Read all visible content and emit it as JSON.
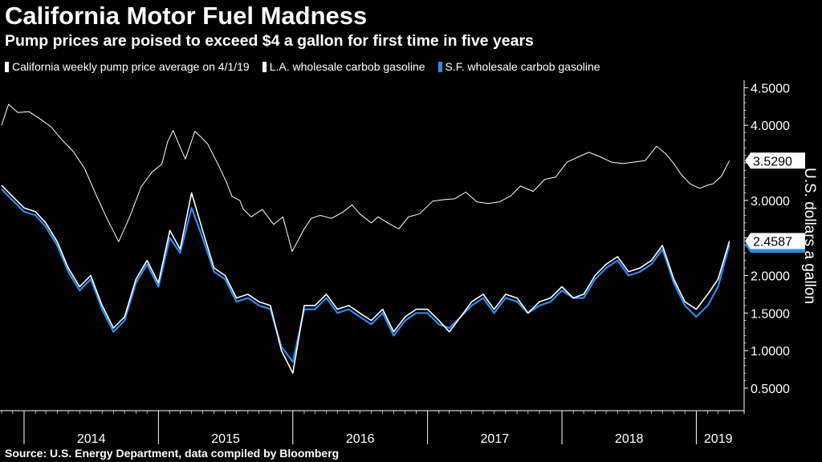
{
  "title": "California Motor Fuel Madness",
  "subtitle": "Pump prices are poised to exceed $4 a gallon for first time in five years",
  "source": "Source: U.S. Energy Department, data compiled by Bloomberg",
  "colors": {
    "background": "#000000",
    "pump": "#ffffff",
    "la": "#ffffff",
    "sf": "#2b8cf0"
  },
  "chart_data": {
    "type": "line",
    "ylabel": "U.S. dollars a gallon",
    "ylim": [
      0.2,
      4.6
    ],
    "y_ticks": [
      "4.5000",
      "4.0000",
      "3.5000",
      "3.0000",
      "2.5000",
      "2.0000",
      "1.5000",
      "1.0000",
      "0.5000"
    ],
    "y_tick_values": [
      4.5,
      4.0,
      3.5,
      3.0,
      2.5,
      2.0,
      1.5,
      1.0,
      0.5
    ],
    "x_range": [
      "2013-11-01",
      "2019-04-30"
    ],
    "x_tick_labels": [
      "2014",
      "2015",
      "2016",
      "2017",
      "2018",
      "2019"
    ],
    "x_tick_years": [
      2014,
      2015,
      2016,
      2017,
      2018,
      2019
    ],
    "legend_position": "top-left",
    "grid": false,
    "last_value_labels": {
      "pump": "3.5290",
      "la": "2.4587"
    },
    "series": [
      {
        "name": "California weekly pump price average on 4/1/19",
        "key": "pump",
        "x": [
          "2013-11-01",
          "2013-11-20",
          "2013-12-15",
          "2014-01-15",
          "2014-02-15",
          "2014-03-15",
          "2014-04-15",
          "2014-05-15",
          "2014-06-15",
          "2014-07-15",
          "2014-08-15",
          "2014-09-15",
          "2014-10-15",
          "2014-11-15",
          "2014-12-15",
          "2015-01-10",
          "2015-01-26",
          "2015-02-10",
          "2015-02-28",
          "2015-03-15",
          "2015-04-10",
          "2015-04-25",
          "2015-05-15",
          "2015-06-15",
          "2015-07-05",
          "2015-07-20",
          "2015-08-10",
          "2015-08-20",
          "2015-09-10",
          "2015-10-10",
          "2015-11-10",
          "2015-12-05",
          "2015-12-30",
          "2016-02-01",
          "2016-02-20",
          "2016-03-15",
          "2016-04-15",
          "2016-05-15",
          "2016-06-10",
          "2016-07-01",
          "2016-08-01",
          "2016-08-20",
          "2016-09-15",
          "2016-10-15",
          "2016-11-10",
          "2016-12-10",
          "2017-01-15",
          "2017-02-15",
          "2017-03-15",
          "2017-04-15",
          "2017-05-15",
          "2017-06-15",
          "2017-07-15",
          "2017-08-15",
          "2017-09-10",
          "2017-10-15",
          "2017-11-15",
          "2017-12-15",
          "2018-01-15",
          "2018-02-15",
          "2018-03-15",
          "2018-04-15",
          "2018-05-15",
          "2018-06-15",
          "2018-07-15",
          "2018-08-15",
          "2018-09-15",
          "2018-10-10",
          "2018-11-01",
          "2018-11-20",
          "2018-12-15",
          "2019-01-10",
          "2019-01-30",
          "2019-02-15",
          "2019-03-10",
          "2019-04-01"
        ],
        "values": [
          4.0,
          4.28,
          4.17,
          4.18,
          4.08,
          3.98,
          3.8,
          3.65,
          3.42,
          3.08,
          2.75,
          2.45,
          2.78,
          3.18,
          3.38,
          3.48,
          3.78,
          3.93,
          3.72,
          3.55,
          3.92,
          3.85,
          3.75,
          3.45,
          3.24,
          3.05,
          3.0,
          2.88,
          2.78,
          2.88,
          2.68,
          2.78,
          2.32,
          2.62,
          2.76,
          2.8,
          2.76,
          2.84,
          2.94,
          2.82,
          2.7,
          2.78,
          2.7,
          2.62,
          2.78,
          2.82,
          2.99,
          3.01,
          3.02,
          3.11,
          2.98,
          2.96,
          2.98,
          3.06,
          3.19,
          3.12,
          3.28,
          3.31,
          3.51,
          3.58,
          3.64,
          3.58,
          3.51,
          3.49,
          3.51,
          3.53,
          3.72,
          3.62,
          3.49,
          3.35,
          3.22,
          3.16,
          3.2,
          3.22,
          3.32,
          3.529
        ]
      },
      {
        "name": "L.A. wholesale carbob gasoline",
        "key": "la",
        "x": [
          "2013-11-01",
          "2013-12-01",
          "2014-01-01",
          "2014-02-01",
          "2014-03-01",
          "2014-04-01",
          "2014-05-01",
          "2014-06-01",
          "2014-07-01",
          "2014-08-01",
          "2014-09-01",
          "2014-10-01",
          "2014-11-01",
          "2014-12-01",
          "2015-01-01",
          "2015-02-01",
          "2015-03-01",
          "2015-04-01",
          "2015-05-01",
          "2015-06-01",
          "2015-07-01",
          "2015-08-01",
          "2015-09-01",
          "2015-10-01",
          "2015-11-01",
          "2015-12-01",
          "2016-01-01",
          "2016-02-01",
          "2016-03-01",
          "2016-04-01",
          "2016-05-01",
          "2016-06-01",
          "2016-07-01",
          "2016-08-01",
          "2016-09-01",
          "2016-10-01",
          "2016-11-01",
          "2016-12-01",
          "2017-01-01",
          "2017-02-01",
          "2017-03-01",
          "2017-04-01",
          "2017-05-01",
          "2017-06-01",
          "2017-07-01",
          "2017-08-01",
          "2017-09-01",
          "2017-10-01",
          "2017-11-01",
          "2017-12-01",
          "2018-01-01",
          "2018-02-01",
          "2018-03-01",
          "2018-04-01",
          "2018-05-01",
          "2018-06-01",
          "2018-07-01",
          "2018-08-01",
          "2018-09-01",
          "2018-10-01",
          "2018-11-01",
          "2018-12-01",
          "2019-01-01",
          "2019-02-01",
          "2019-03-01",
          "2019-04-01"
        ],
        "values": [
          3.2,
          3.05,
          2.9,
          2.85,
          2.7,
          2.45,
          2.1,
          1.85,
          2.0,
          1.6,
          1.3,
          1.45,
          1.95,
          2.2,
          1.9,
          2.6,
          2.35,
          3.1,
          2.6,
          2.1,
          2.0,
          1.7,
          1.75,
          1.65,
          1.6,
          1.0,
          0.7,
          1.6,
          1.6,
          1.75,
          1.55,
          1.6,
          1.5,
          1.4,
          1.55,
          1.25,
          1.45,
          1.55,
          1.55,
          1.4,
          1.25,
          1.45,
          1.65,
          1.75,
          1.55,
          1.75,
          1.7,
          1.5,
          1.65,
          1.7,
          1.85,
          1.7,
          1.75,
          2.0,
          2.15,
          2.25,
          2.05,
          2.1,
          2.2,
          2.4,
          1.95,
          1.65,
          1.55,
          1.75,
          1.95,
          2.4587
        ]
      },
      {
        "name": "S.F. wholesale carbob gasoline",
        "key": "sf",
        "x": [
          "2013-11-01",
          "2013-12-01",
          "2014-01-01",
          "2014-02-01",
          "2014-03-01",
          "2014-04-01",
          "2014-05-01",
          "2014-06-01",
          "2014-07-01",
          "2014-08-01",
          "2014-09-01",
          "2014-10-01",
          "2014-11-01",
          "2014-12-01",
          "2015-01-01",
          "2015-02-01",
          "2015-03-01",
          "2015-04-01",
          "2015-05-01",
          "2015-06-01",
          "2015-07-01",
          "2015-08-01",
          "2015-09-01",
          "2015-10-01",
          "2015-11-01",
          "2015-12-01",
          "2016-01-01",
          "2016-02-01",
          "2016-03-01",
          "2016-04-01",
          "2016-05-01",
          "2016-06-01",
          "2016-07-01",
          "2016-08-01",
          "2016-09-01",
          "2016-10-01",
          "2016-11-01",
          "2016-12-01",
          "2017-01-01",
          "2017-02-01",
          "2017-03-01",
          "2017-04-01",
          "2017-05-01",
          "2017-06-01",
          "2017-07-01",
          "2017-08-01",
          "2017-09-01",
          "2017-10-01",
          "2017-11-01",
          "2017-12-01",
          "2018-01-01",
          "2018-02-01",
          "2018-03-01",
          "2018-04-01",
          "2018-05-01",
          "2018-06-01",
          "2018-07-01",
          "2018-08-01",
          "2018-09-01",
          "2018-10-01",
          "2018-11-01",
          "2018-12-01",
          "2019-01-01",
          "2019-02-01",
          "2019-03-01",
          "2019-04-01"
        ],
        "values": [
          3.15,
          3.0,
          2.85,
          2.8,
          2.65,
          2.4,
          2.05,
          1.8,
          1.95,
          1.55,
          1.25,
          1.4,
          1.9,
          2.15,
          1.85,
          2.5,
          2.3,
          2.9,
          2.5,
          2.05,
          1.95,
          1.65,
          1.7,
          1.6,
          1.55,
          1.05,
          0.85,
          1.55,
          1.55,
          1.7,
          1.5,
          1.55,
          1.45,
          1.35,
          1.5,
          1.2,
          1.4,
          1.5,
          1.5,
          1.35,
          1.3,
          1.45,
          1.6,
          1.7,
          1.5,
          1.7,
          1.65,
          1.5,
          1.6,
          1.65,
          1.8,
          1.7,
          1.7,
          1.95,
          2.1,
          2.2,
          2.0,
          2.05,
          2.15,
          2.35,
          1.9,
          1.6,
          1.45,
          1.6,
          1.85,
          2.41
        ]
      }
    ]
  }
}
